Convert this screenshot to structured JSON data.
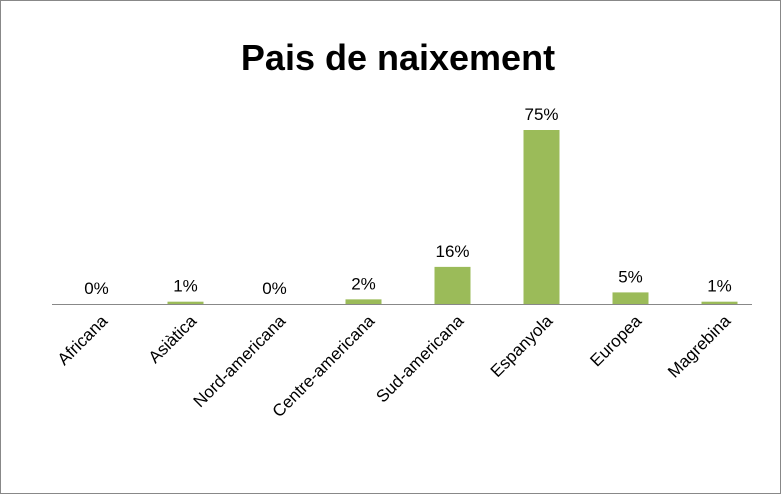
{
  "chart_data": {
    "type": "bar",
    "title": "Pais de naixement",
    "categories": [
      "Africana",
      "Asiàtica",
      "Nord-americana",
      "Centre-americana",
      "Sud-americana",
      "Espanyola",
      "Europea",
      "Magrebina"
    ],
    "values": [
      0,
      1,
      0,
      2,
      16,
      75,
      5,
      1
    ],
    "value_labels": [
      "0%",
      "1%",
      "0%",
      "2%",
      "16%",
      "75%",
      "5%",
      "1%"
    ],
    "color": "#9bbb59"
  }
}
